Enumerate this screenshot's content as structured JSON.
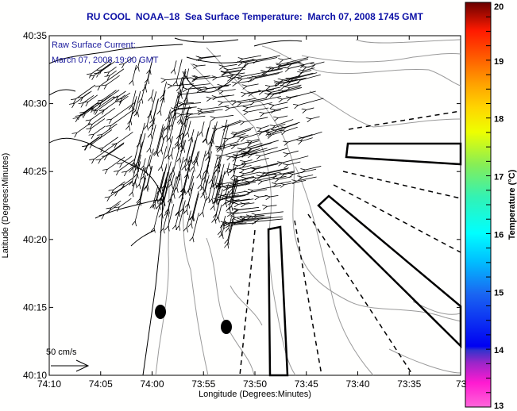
{
  "title": "RU COOL  NOAA–18  Sea Surface Temperature:  March 07, 2008 1745 GMT",
  "overlay": {
    "line1": "Raw Surface Current:",
    "line2": "March 07, 2008 19:00 GMT"
  },
  "scale_label": "50 cm/s",
  "axes": {
    "xlabel": "Longitude (Degrees:Minutes)",
    "ylabel": "Latitude (Degrees:Minutes)",
    "x_ticks": [
      "74:10",
      "74:05",
      "74:00",
      "73:55",
      "73:50",
      "73:45",
      "73:40",
      "73:35",
      "73:3"
    ],
    "y_ticks": [
      "40:35",
      "40:30",
      "40:25",
      "40:20",
      "40:15",
      "40:10"
    ]
  },
  "colorbar": {
    "label": "Temperature (°C)",
    "ticks": [
      "20",
      "19",
      "18",
      "17",
      "16",
      "15",
      "14",
      "13"
    ],
    "min": 13,
    "max": 20
  },
  "colors": {
    "title": "#0d11a6",
    "overlay_text": "#1a1a9c",
    "coast": "#000000",
    "bathymetry": "#9a9a9a"
  }
}
